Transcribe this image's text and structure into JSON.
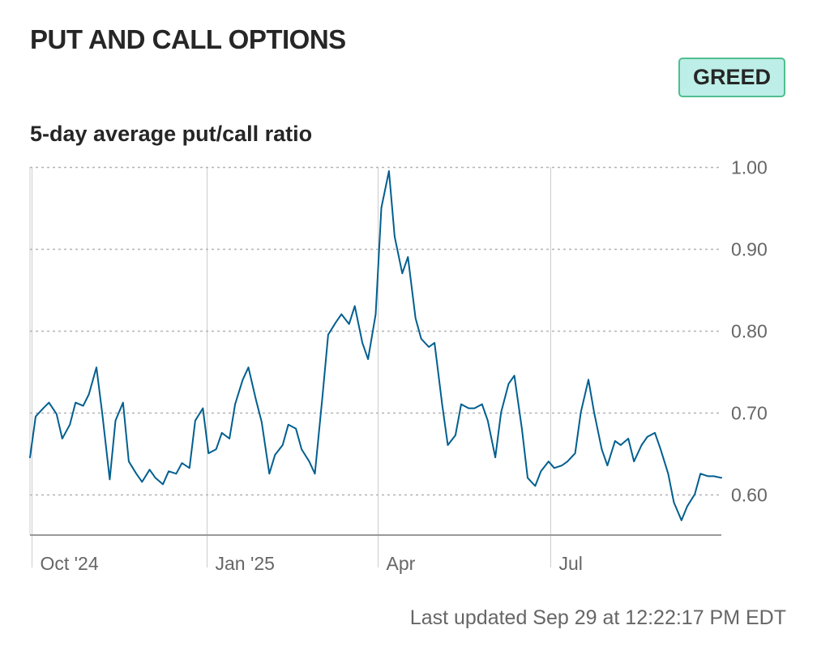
{
  "header": {
    "title": "PUT AND CALL OPTIONS",
    "status_badge": "GREED",
    "badge_color": "#bdeee8",
    "badge_border_color": "#4fbf8f"
  },
  "footer": {
    "last_updated": "Last updated Sep 29 at 12:22:17 PM EDT"
  },
  "chart_data": {
    "type": "line",
    "title": "5-day average put/call ratio",
    "xlabel": "",
    "ylabel": "",
    "ylim": [
      0.55,
      1.0
    ],
    "y_ticks": [
      "1.00",
      "0.90",
      "0.80",
      "0.70",
      "0.60"
    ],
    "x_ticks": [
      "Oct '24",
      "Jan '25",
      "Apr",
      "Jul"
    ],
    "x_range": [
      "2024-09-30",
      "2025-09-29"
    ],
    "x_tick_dates": [
      "2024-10-01",
      "2025-01-01",
      "2025-04-01",
      "2025-07-01"
    ],
    "grid": "horizontal dotted",
    "line_color": "#005f8f",
    "series": [
      {
        "dates": [
          "2024-09-30",
          "2024-10-03",
          "2024-10-07",
          "2024-10-10",
          "2024-10-14",
          "2024-10-17",
          "2024-10-21",
          "2024-10-24",
          "2024-10-28",
          "2024-10-31",
          "2024-11-04",
          "2024-11-07",
          "2024-11-11",
          "2024-11-14",
          "2024-11-18",
          "2024-11-21",
          "2024-11-25",
          "2024-11-28",
          "2024-12-02",
          "2024-12-05",
          "2024-12-09",
          "2024-12-12",
          "2024-12-16",
          "2024-12-19",
          "2024-12-23",
          "2024-12-26",
          "2024-12-30",
          "2025-01-02",
          "2025-01-06",
          "2025-01-09",
          "2025-01-13",
          "2025-01-16",
          "2025-01-20",
          "2025-01-23",
          "2025-01-27",
          "2025-01-30",
          "2025-02-03",
          "2025-02-06",
          "2025-02-10",
          "2025-02-13",
          "2025-02-17",
          "2025-02-20",
          "2025-02-24",
          "2025-02-27",
          "2025-03-03",
          "2025-03-06",
          "2025-03-10",
          "2025-03-13",
          "2025-03-17",
          "2025-03-20",
          "2025-03-24",
          "2025-03-27",
          "2025-03-31",
          "2025-04-03",
          "2025-04-07",
          "2025-04-10",
          "2025-04-14",
          "2025-04-17",
          "2025-04-21",
          "2025-04-24",
          "2025-04-28",
          "2025-05-01",
          "2025-05-05",
          "2025-05-08",
          "2025-05-12",
          "2025-05-15",
          "2025-05-19",
          "2025-05-22",
          "2025-05-26",
          "2025-05-29",
          "2025-06-02",
          "2025-06-05",
          "2025-06-09",
          "2025-06-12",
          "2025-06-16",
          "2025-06-19",
          "2025-06-23",
          "2025-06-26",
          "2025-06-30",
          "2025-07-03",
          "2025-07-07",
          "2025-07-10",
          "2025-07-14",
          "2025-07-17",
          "2025-07-21",
          "2025-07-24",
          "2025-07-28",
          "2025-07-31",
          "2025-08-04",
          "2025-08-07",
          "2025-08-11",
          "2025-08-14",
          "2025-08-18",
          "2025-08-21",
          "2025-08-25",
          "2025-08-28",
          "2025-09-01",
          "2025-09-04",
          "2025-09-08",
          "2025-09-11",
          "2025-09-15",
          "2025-09-18",
          "2025-09-22",
          "2025-09-25",
          "2025-09-29"
        ],
        "values": [
          0.645,
          0.695,
          0.705,
          0.712,
          0.698,
          0.668,
          0.685,
          0.712,
          0.708,
          0.722,
          0.755,
          0.7,
          0.618,
          0.69,
          0.712,
          0.64,
          0.625,
          0.615,
          0.63,
          0.62,
          0.612,
          0.628,
          0.625,
          0.638,
          0.632,
          0.69,
          0.705,
          0.65,
          0.655,
          0.675,
          0.668,
          0.71,
          0.74,
          0.755,
          0.715,
          0.688,
          0.625,
          0.648,
          0.66,
          0.685,
          0.68,
          0.655,
          0.64,
          0.625,
          0.72,
          0.795,
          0.81,
          0.82,
          0.808,
          0.83,
          0.785,
          0.765,
          0.82,
          0.95,
          0.995,
          0.915,
          0.87,
          0.89,
          0.815,
          0.79,
          0.78,
          0.785,
          0.71,
          0.66,
          0.672,
          0.71,
          0.705,
          0.705,
          0.71,
          0.69,
          0.645,
          0.7,
          0.735,
          0.745,
          0.68,
          0.62,
          0.61,
          0.628,
          0.64,
          0.632,
          0.635,
          0.64,
          0.65,
          0.7,
          0.74,
          0.7,
          0.655,
          0.635,
          0.665,
          0.66,
          0.668,
          0.64,
          0.66,
          0.67,
          0.675,
          0.655,
          0.625,
          0.59,
          0.568,
          0.585,
          0.6,
          0.625,
          0.622,
          0.622,
          0.62
        ]
      }
    ]
  }
}
